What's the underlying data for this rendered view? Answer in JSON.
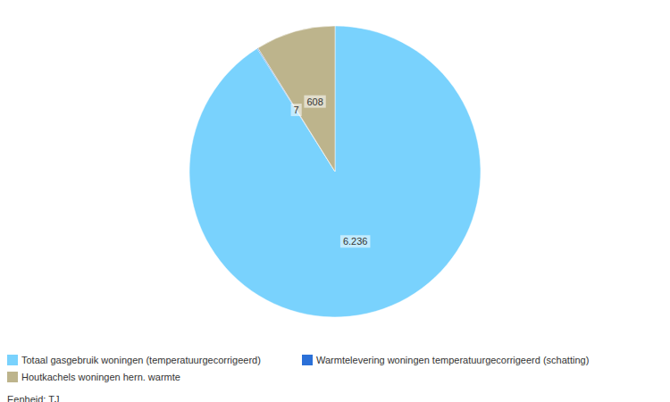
{
  "chart_data": {
    "type": "pie",
    "categories": [
      "Totaal gasgebruik woningen (temperatuurgecorrigeerd)",
      "Warmtelevering woningen temperatuurgecorrigeerd (schatting)",
      "Houtkachels woningen hern. warmte"
    ],
    "values": [
      6236,
      7,
      608
    ],
    "value_labels": [
      "6.236",
      "7",
      "608"
    ],
    "colors": [
      "#79d2fd",
      "#2b70d8",
      "#bdb48c"
    ],
    "data_labels": true,
    "legend": "bottom",
    "annotations": [
      "Eenheid: TJ"
    ]
  }
}
